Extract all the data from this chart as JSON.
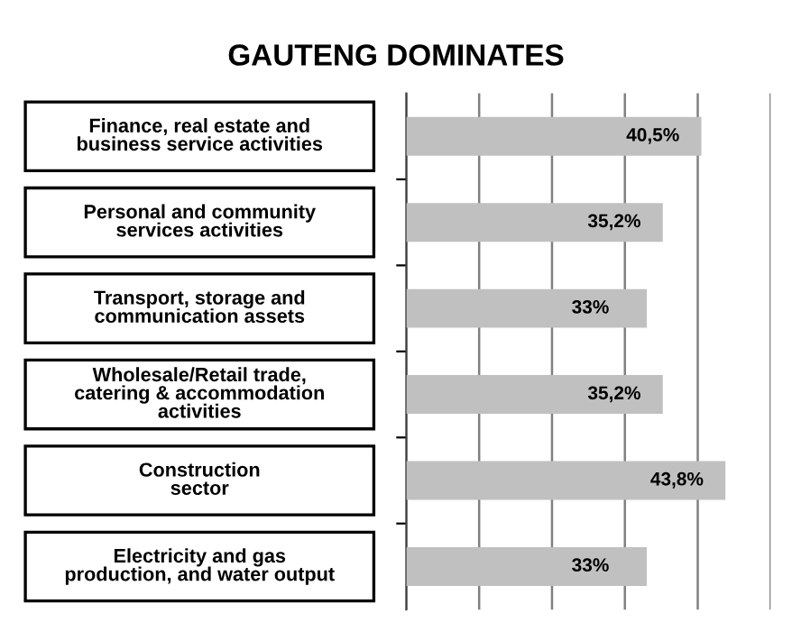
{
  "chart_data": {
    "type": "bar",
    "orientation": "horizontal",
    "title": "GAUTENG DOMINATES",
    "categories": [
      "Finance, real estate and\nbusiness service activities",
      "Personal and community\nservices activities",
      "Transport, storage and\ncommunication assets",
      "Wholesale/Retail trade,\ncatering & accommodation\nactivities",
      "Construction\nsector",
      "Electricity and gas\nproduction, and water output"
    ],
    "values": [
      40.5,
      35.2,
      33,
      35.2,
      43.8,
      33
    ],
    "value_labels": [
      "40,5%",
      "35,2%",
      "33%",
      "35,2%",
      "43,8%",
      "33%"
    ],
    "color": "#c0c0c0",
    "xlim": [
      0,
      50
    ],
    "xticks": [
      {
        "value": 0,
        "label": null
      },
      {
        "value": 10,
        "label": null
      },
      {
        "value": 20,
        "label": null
      },
      {
        "value": 30,
        "label": null
      },
      {
        "value": 40,
        "label": null
      },
      {
        "value": 50,
        "label": null
      }
    ],
    "grid": "x",
    "tick_labels": "y"
  }
}
